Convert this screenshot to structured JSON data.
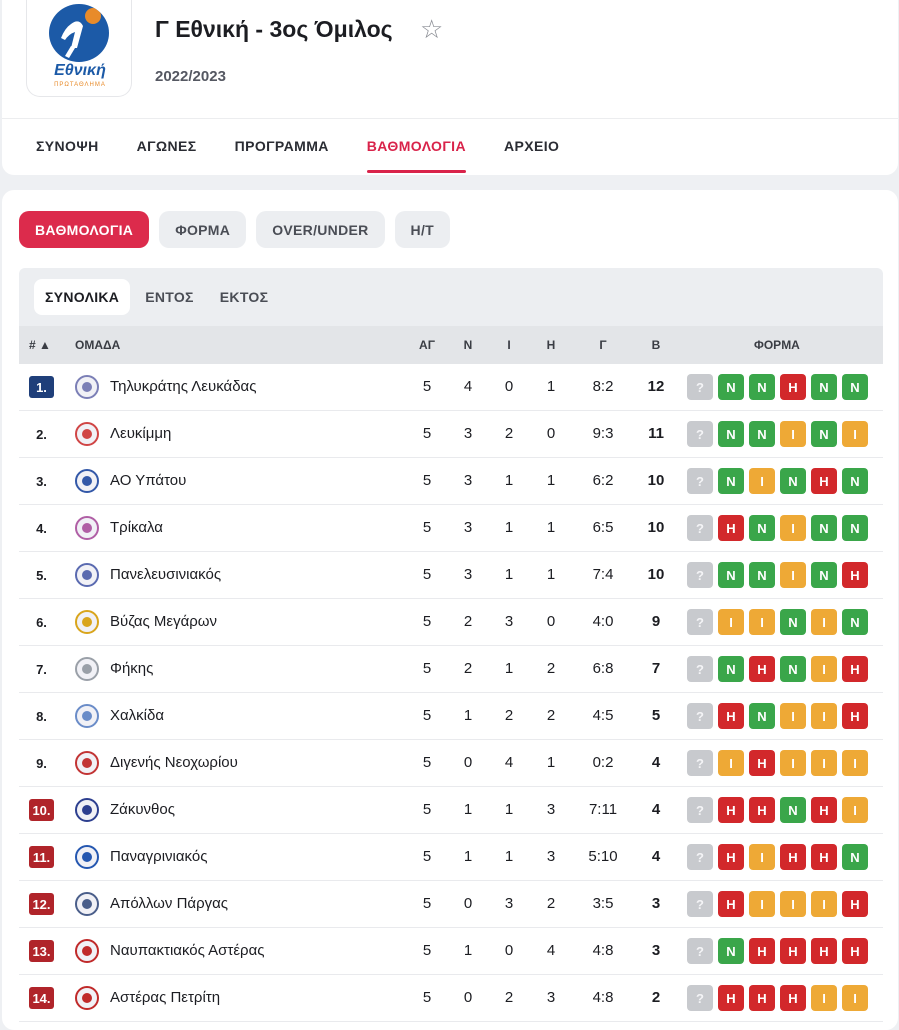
{
  "header": {
    "logo_text": "Εθνική",
    "logo_sub": "ΠΡΩΤΑΘΛΗΜΑ",
    "title": "Γ Εθνική - 3ος Όμιλος",
    "season": "2022/2023",
    "star": "☆"
  },
  "nav": {
    "tabs": [
      "ΣΥΝΟΨΗ",
      "ΑΓΩΝΕΣ",
      "ΠΡΟΓΡΑΜΜΑ",
      "ΒΑΘΜΟΛΟΓΙΑ",
      "ΑΡΧΕΙΟ"
    ],
    "active": "ΒΑΘΜΟΛΟΓΙΑ"
  },
  "pills": [
    "ΒΑΘΜΟΛΟΓΙΑ",
    "ΦΟΡΜΑ",
    "OVER/UNDER",
    "H/T"
  ],
  "subtabs": [
    "ΣΥΝΟΛΙΚΑ",
    "ΕΝΤΟΣ",
    "ΕΚΤΟΣ"
  ],
  "columns": {
    "rank": "# ▲",
    "team": "ΟΜΑΔΑ",
    "played": "ΑΓ",
    "won": "Ν",
    "draw": "Ι",
    "lost": "Η",
    "goals": "Γ",
    "points": "Β",
    "form": "ΦΟΡΜΑ"
  },
  "form_colors": {
    "N": "#3aa64a",
    "I": "#eea936",
    "H": "#d2282b",
    "?": "#c8cace"
  },
  "rows": [
    {
      "rank": "1.",
      "status": "promo",
      "team": "Τηλυκράτης Λευκάδας",
      "p": "5",
      "w": "4",
      "d": "0",
      "l": "1",
      "g": "8:2",
      "pts": "12",
      "form": [
        "?",
        "N",
        "N",
        "H",
        "N",
        "N"
      ],
      "crest_color": "#7b7fb6"
    },
    {
      "rank": "2.",
      "status": "",
      "team": "Λευκίμμη",
      "p": "5",
      "w": "3",
      "d": "2",
      "l": "0",
      "g": "9:3",
      "pts": "11",
      "form": [
        "?",
        "N",
        "N",
        "I",
        "N",
        "I"
      ],
      "crest_color": "#d04545"
    },
    {
      "rank": "3.",
      "status": "",
      "team": "ΑΟ Υπάτου",
      "p": "5",
      "w": "3",
      "d": "1",
      "l": "1",
      "g": "6:2",
      "pts": "10",
      "form": [
        "?",
        "N",
        "I",
        "N",
        "H",
        "N"
      ],
      "crest_color": "#3358a8"
    },
    {
      "rank": "4.",
      "status": "",
      "team": "Τρίκαλα",
      "p": "5",
      "w": "3",
      "d": "1",
      "l": "1",
      "g": "6:5",
      "pts": "10",
      "form": [
        "?",
        "H",
        "N",
        "I",
        "N",
        "N"
      ],
      "crest_color": "#b05fa5"
    },
    {
      "rank": "5.",
      "status": "",
      "team": "Πανελευσινιακός",
      "p": "5",
      "w": "3",
      "d": "1",
      "l": "1",
      "g": "7:4",
      "pts": "10",
      "form": [
        "?",
        "N",
        "N",
        "I",
        "N",
        "H"
      ],
      "crest_color": "#5a6ab0"
    },
    {
      "rank": "6.",
      "status": "",
      "team": "Βύζας Μεγάρων",
      "p": "5",
      "w": "2",
      "d": "3",
      "l": "0",
      "g": "4:0",
      "pts": "9",
      "form": [
        "?",
        "I",
        "I",
        "N",
        "I",
        "N"
      ],
      "crest_color": "#d9a51c"
    },
    {
      "rank": "7.",
      "status": "",
      "team": "Φήκης",
      "p": "5",
      "w": "2",
      "d": "1",
      "l": "2",
      "g": "6:8",
      "pts": "7",
      "form": [
        "?",
        "N",
        "H",
        "N",
        "I",
        "H"
      ],
      "crest_color": "#9aa0a8"
    },
    {
      "rank": "8.",
      "status": "",
      "team": "Χαλκίδα",
      "p": "5",
      "w": "1",
      "d": "2",
      "l": "2",
      "g": "4:5",
      "pts": "5",
      "form": [
        "?",
        "H",
        "N",
        "I",
        "I",
        "H"
      ],
      "crest_color": "#6a8cc8"
    },
    {
      "rank": "9.",
      "status": "",
      "team": "Διγενής Νεοχωρίου",
      "p": "5",
      "w": "0",
      "d": "4",
      "l": "1",
      "g": "0:2",
      "pts": "4",
      "form": [
        "?",
        "I",
        "H",
        "I",
        "I",
        "I"
      ],
      "crest_color": "#c23434"
    },
    {
      "rank": "10.",
      "status": "releg",
      "team": "Ζάκυνθος",
      "p": "5",
      "w": "1",
      "d": "1",
      "l": "3",
      "g": "7:11",
      "pts": "4",
      "form": [
        "?",
        "H",
        "H",
        "N",
        "H",
        "I"
      ],
      "crest_color": "#2d3f8f"
    },
    {
      "rank": "11.",
      "status": "releg",
      "team": "Παναγρινιακός",
      "p": "5",
      "w": "1",
      "d": "1",
      "l": "3",
      "g": "5:10",
      "pts": "4",
      "form": [
        "?",
        "H",
        "I",
        "H",
        "H",
        "N"
      ],
      "crest_color": "#2557b0"
    },
    {
      "rank": "12.",
      "status": "releg",
      "team": "Απόλλων Πάργας",
      "p": "5",
      "w": "0",
      "d": "3",
      "l": "2",
      "g": "3:5",
      "pts": "3",
      "form": [
        "?",
        "H",
        "I",
        "I",
        "I",
        "H"
      ],
      "crest_color": "#4a5e8a"
    },
    {
      "rank": "13.",
      "status": "releg",
      "team": "Ναυπακτιακός Αστέρας",
      "p": "5",
      "w": "1",
      "d": "0",
      "l": "4",
      "g": "4:8",
      "pts": "3",
      "form": [
        "?",
        "N",
        "H",
        "H",
        "H",
        "H"
      ],
      "crest_color": "#c02a2a"
    },
    {
      "rank": "14.",
      "status": "releg",
      "team": "Αστέρας Πετρίτη",
      "p": "5",
      "w": "0",
      "d": "2",
      "l": "3",
      "g": "4:8",
      "pts": "2",
      "form": [
        "?",
        "H",
        "H",
        "H",
        "I",
        "I"
      ],
      "crest_color": "#c02a2a"
    }
  ]
}
